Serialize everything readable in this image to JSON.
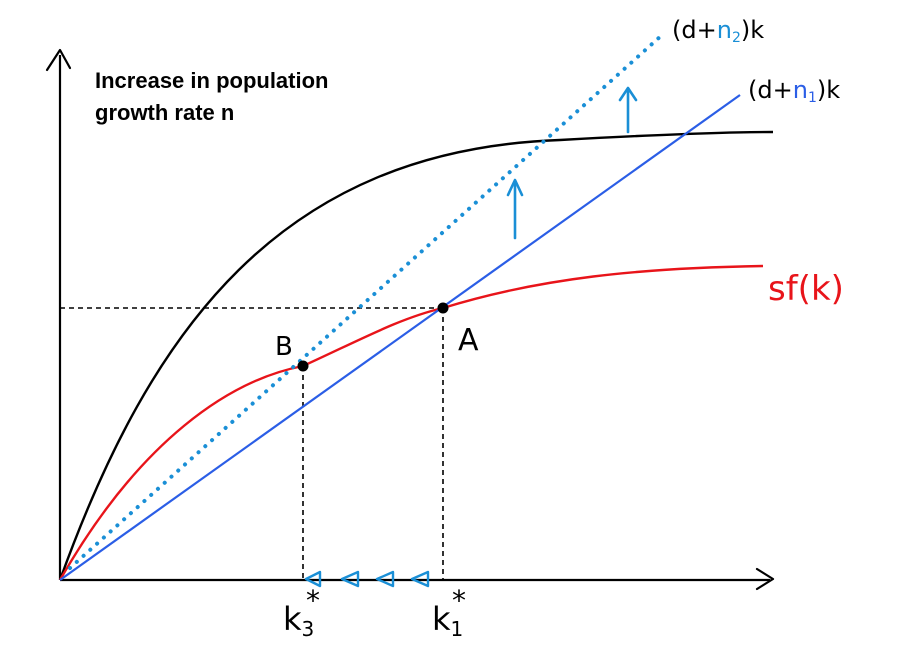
{
  "title": {
    "line1": "Increase in population",
    "line2": "growth rate n"
  },
  "labels": {
    "upper_line_prefix": "(d+",
    "upper_line_n": "n",
    "upper_line_sub": "2",
    "upper_line_suffix": ")k",
    "lower_line_prefix": "(d+",
    "lower_line_n": "n",
    "lower_line_sub": "1",
    "lower_line_suffix": ")k",
    "savings_curve": "sf(k)",
    "point_a": "A",
    "point_b": "B",
    "k_new": "k",
    "k_new_sub": "3",
    "k_old": "k",
    "k_old_sub": "1",
    "star": "*"
  },
  "colors": {
    "production_curve": "#000000",
    "savings_curve": "#e8141a",
    "depreciation_line_1": "#2b5ee6",
    "depreciation_line_2": "#1a8fd6",
    "arrows": "#1a8fd6",
    "axes": "#000000"
  }
}
